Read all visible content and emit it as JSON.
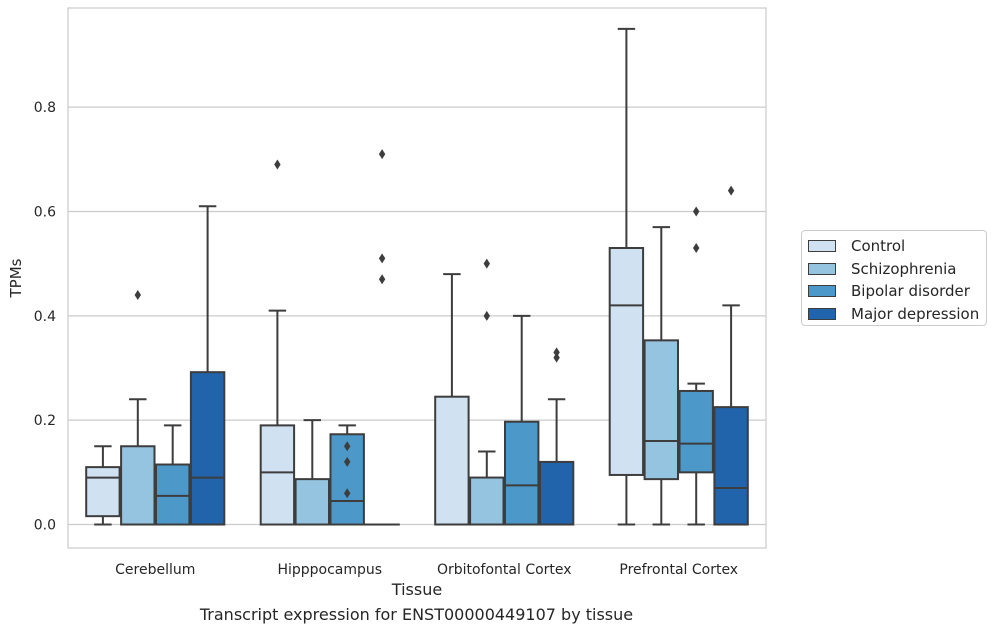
{
  "chart_data": {
    "type": "boxplot",
    "title": "",
    "caption": "Transcript expression for ENST00000449107 by tissue",
    "xlabel": "Tissue",
    "ylabel": "TPMs",
    "ylim": [
      -0.045,
      0.99
    ],
    "yticks": [
      0.0,
      0.2,
      0.4,
      0.6,
      0.8
    ],
    "ytick_labels": [
      "0.0",
      "0.2",
      "0.4",
      "0.6",
      "0.8"
    ],
    "grid": "horizontal",
    "legend_position": "right",
    "categories": [
      "Cerebellum",
      "Hipppocampus",
      "Orbitofontal Cortex",
      "Prefrontal Cortex"
    ],
    "series": [
      {
        "name": "Control",
        "color": "#d0e1f2",
        "boxes": [
          {
            "whislo": 0.0,
            "q1": 0.016,
            "med": 0.09,
            "q3": 0.11,
            "whishi": 0.15,
            "fliers": []
          },
          {
            "whislo": 0.0,
            "q1": 0.0,
            "med": 0.1,
            "q3": 0.19,
            "whishi": 0.41,
            "fliers": [
              0.69
            ]
          },
          {
            "whislo": 0.0,
            "q1": 0.0,
            "med": 0.0,
            "q3": 0.245,
            "whishi": 0.48,
            "fliers": []
          },
          {
            "whislo": 0.0,
            "q1": 0.095,
            "med": 0.42,
            "q3": 0.53,
            "whishi": 0.95,
            "fliers": []
          }
        ]
      },
      {
        "name": "Schizophrenia",
        "color": "#94c4df",
        "boxes": [
          {
            "whislo": 0.0,
            "q1": 0.0,
            "med": 0.0,
            "q3": 0.15,
            "whishi": 0.24,
            "fliers": [
              0.44
            ]
          },
          {
            "whislo": 0.0,
            "q1": 0.0,
            "med": 0.0,
            "q3": 0.087,
            "whishi": 0.2,
            "fliers": []
          },
          {
            "whislo": 0.0,
            "q1": 0.0,
            "med": 0.0,
            "q3": 0.09,
            "whishi": 0.14,
            "fliers": [
              0.4,
              0.5
            ]
          },
          {
            "whislo": 0.0,
            "q1": 0.087,
            "med": 0.16,
            "q3": 0.353,
            "whishi": 0.57,
            "fliers": []
          }
        ]
      },
      {
        "name": "Bipolar disorder",
        "color": "#4b98c9",
        "boxes": [
          {
            "whislo": 0.0,
            "q1": 0.0,
            "med": 0.055,
            "q3": 0.115,
            "whishi": 0.19,
            "fliers": []
          },
          {
            "whislo": 0.0,
            "q1": 0.0,
            "med": 0.045,
            "q3": 0.173,
            "whishi": 0.19,
            "fliers": [
              0.06,
              0.12,
              0.15
            ]
          },
          {
            "whislo": 0.0,
            "q1": 0.0,
            "med": 0.075,
            "q3": 0.197,
            "whishi": 0.4,
            "fliers": []
          },
          {
            "whislo": 0.0,
            "q1": 0.1,
            "med": 0.155,
            "q3": 0.256,
            "whishi": 0.27,
            "fliers": [
              0.53,
              0.6
            ]
          }
        ]
      },
      {
        "name": "Major depression",
        "color": "#2164ab",
        "boxes": [
          {
            "whislo": 0.0,
            "q1": 0.0,
            "med": 0.09,
            "q3": 0.292,
            "whishi": 0.61,
            "fliers": []
          },
          {
            "whislo": 0.0,
            "q1": 0.0,
            "med": 0.0,
            "q3": 0.0,
            "whishi": 0.0,
            "fliers": [
              0.47,
              0.51,
              0.71
            ]
          },
          {
            "whislo": 0.0,
            "q1": 0.0,
            "med": 0.0,
            "q3": 0.12,
            "whishi": 0.24,
            "fliers": [
              0.32,
              0.33
            ]
          },
          {
            "whislo": 0.0,
            "q1": 0.0,
            "med": 0.07,
            "q3": 0.225,
            "whishi": 0.42,
            "fliers": [
              0.64
            ]
          }
        ]
      }
    ]
  }
}
